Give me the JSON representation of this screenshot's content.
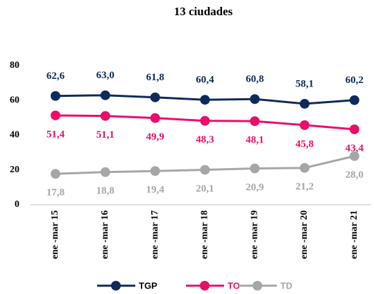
{
  "chart_data": {
    "type": "line",
    "title": "13 ciudades",
    "categories": [
      "ene -mar 15",
      "ene -mar 16",
      "ene -mar 17",
      "ene -mar 18",
      "ene -mar 19",
      "ene -mar 20",
      "ene -mar 21"
    ],
    "series": [
      {
        "name": "TGP",
        "color": "#0d2a5c",
        "values": [
          62.6,
          63.0,
          61.8,
          60.4,
          60.8,
          58.1,
          60.2
        ],
        "value_labels": [
          "62,6",
          "63,0",
          "61,8",
          "60,4",
          "60,8",
          "58,1",
          "60,2"
        ]
      },
      {
        "name": "TO",
        "color": "#ea0d6a",
        "values": [
          51.4,
          51.1,
          49.9,
          48.3,
          48.1,
          45.8,
          43.4
        ],
        "value_labels": [
          "51,4",
          "51,1",
          "49,9",
          "48,3",
          "48,1",
          "45,8",
          "43,4"
        ]
      },
      {
        "name": "TD",
        "color": "#a6a6a6",
        "values": [
          17.8,
          18.8,
          19.4,
          20.1,
          20.9,
          21.2,
          28.0
        ],
        "value_labels": [
          "17,8",
          "18,8",
          "19,4",
          "20,1",
          "20,9",
          "21,2",
          "28,0"
        ]
      }
    ],
    "ylim": [
      0,
      80
    ],
    "yticks": [
      0,
      20,
      40,
      60,
      80
    ],
    "grid": false,
    "legend": "bottom"
  }
}
